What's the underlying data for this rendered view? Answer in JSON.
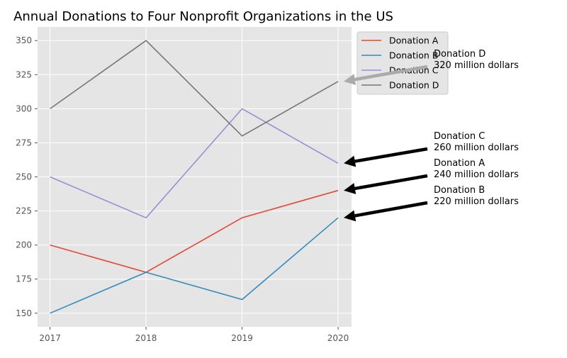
{
  "chart_data": {
    "type": "line",
    "title": "Annual Donations to Four Nonprofit Organizations in the US",
    "xlabel": "",
    "ylabel": "",
    "x": [
      2017,
      2018,
      2019,
      2020
    ],
    "xlim": [
      2016.87,
      2020.14
    ],
    "ylim": [
      140,
      360
    ],
    "yticks": [
      150,
      175,
      200,
      225,
      250,
      275,
      300,
      325,
      350
    ],
    "grid": true,
    "legend_position": "upper right, outside plot area",
    "series": [
      {
        "name": "Donation A",
        "color": "#e24a33",
        "values": [
          200,
          180,
          220,
          240
        ]
      },
      {
        "name": "Donation B",
        "color": "#348abd",
        "values": [
          150,
          180,
          160,
          220
        ]
      },
      {
        "name": "Donation C",
        "color": "#988ed5",
        "values": [
          250,
          220,
          300,
          260
        ]
      },
      {
        "name": "Donation D",
        "color": "#777777",
        "values": [
          300,
          350,
          280,
          320
        ]
      }
    ],
    "annotations": [
      {
        "series": "Donation D",
        "line1": "Donation D",
        "line2": "320 million dollars",
        "target_x": 2020,
        "target_y": 320,
        "arrow_color": "#aaaaaa"
      },
      {
        "series": "Donation C",
        "line1": "Donation C",
        "line2": "260 million dollars",
        "target_x": 2020,
        "target_y": 260,
        "arrow_color": "#000000"
      },
      {
        "series": "Donation A",
        "line1": "Donation A",
        "line2": "240 million dollars",
        "target_x": 2020,
        "target_y": 240,
        "arrow_color": "#000000"
      },
      {
        "series": "Donation B",
        "line1": "Donation B",
        "line2": "220 million dollars",
        "target_x": 2020,
        "target_y": 220,
        "arrow_color": "#000000"
      }
    ],
    "colors": {
      "plot_background": "#e5e5e5",
      "grid": "#ffffff",
      "legend_background": "#e5e5e5",
      "legend_border": "#cccccc"
    }
  }
}
